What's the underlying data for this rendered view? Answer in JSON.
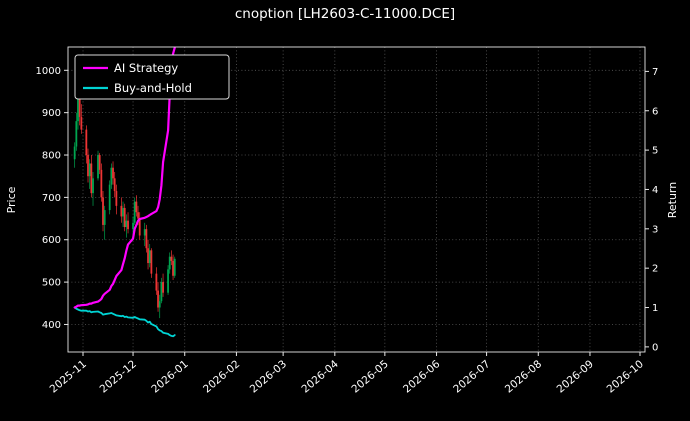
{
  "title": "cnoption [LH2603-C-11000.DCE]",
  "axes": {
    "left_label": "Price",
    "right_label": "Return"
  },
  "legend": [
    {
      "label": "AI Strategy",
      "color": "#ff00ff"
    },
    {
      "label": "Buy-and-Hold",
      "color": "#00d4d4"
    }
  ],
  "colors": {
    "background": "#000000",
    "text": "#ffffff",
    "grid": "#5a5a5a",
    "candle_up": "#00a550",
    "candle_down": "#ef3434"
  },
  "chart_data": {
    "type": "candlestick+line",
    "title": "cnoption [LH2603-C-11000.DCE]",
    "grid": true,
    "legend_position": "upper-left",
    "price_axis": {
      "label": "Price",
      "range": [
        335,
        1055
      ],
      "ticks": [
        400,
        500,
        600,
        700,
        800,
        900,
        1000
      ]
    },
    "return_axis": {
      "label": "Return",
      "range": [
        -0.13,
        7.62
      ],
      "ticks": [
        0,
        1,
        2,
        3,
        4,
        5,
        6,
        7
      ]
    },
    "x_axis": {
      "range": [
        "2025-10-23",
        "2026-10-04"
      ],
      "tick_dates": [
        "2025-11-01",
        "2025-12-01",
        "2026-01-01",
        "2026-02-01",
        "2026-03-01",
        "2026-04-01",
        "2026-05-01",
        "2026-06-01",
        "2026-07-01",
        "2026-08-01",
        "2026-09-01",
        "2026-10-01"
      ],
      "tick_labels": [
        "2025-11",
        "2025-12",
        "2026-01",
        "2026-02",
        "2026-03",
        "2026-04",
        "2026-05",
        "2026-06",
        "2026-07",
        "2026-08",
        "2026-09",
        "2026-10"
      ]
    },
    "candles": {
      "up_color": "#00a550",
      "down_color": "#ef3434",
      "dates": [
        "2025-10-27",
        "2025-10-28",
        "2025-10-29",
        "2025-10-30",
        "2025-10-31",
        "2025-11-03",
        "2025-11-04",
        "2025-11-05",
        "2025-11-06",
        "2025-11-07",
        "2025-11-10",
        "2025-11-11",
        "2025-11-12",
        "2025-11-13",
        "2025-11-14",
        "2025-11-17",
        "2025-11-18",
        "2025-11-19",
        "2025-11-20",
        "2025-11-21",
        "2025-11-24",
        "2025-11-25",
        "2025-11-26",
        "2025-11-27",
        "2025-11-28",
        "2025-12-01",
        "2025-12-02",
        "2025-12-03",
        "2025-12-04",
        "2025-12-05",
        "2025-12-08",
        "2025-12-09",
        "2025-12-10",
        "2025-12-11",
        "2025-12-12",
        "2025-12-15",
        "2025-12-16",
        "2025-12-17",
        "2025-12-18",
        "2025-12-19",
        "2025-12-22",
        "2025-12-23",
        "2025-12-24",
        "2025-12-25",
        "2025-12-26"
      ],
      "open": [
        790,
        820,
        880,
        940,
        890,
        860,
        800,
        750,
        780,
        710,
        745,
        800,
        765,
        700,
        635,
        670,
        730,
        770,
        745,
        715,
        680,
        655,
        675,
        630,
        645,
        625,
        640,
        690,
        665,
        650,
        610,
        625,
        580,
        545,
        575,
        520,
        480,
        440,
        455,
        500,
        475,
        530,
        560,
        550,
        515
      ],
      "high": [
        830,
        900,
        950,
        945,
        920,
        870,
        815,
        790,
        800,
        760,
        810,
        805,
        780,
        715,
        680,
        740,
        780,
        785,
        760,
        730,
        700,
        690,
        685,
        660,
        665,
        655,
        700,
        705,
        680,
        665,
        640,
        635,
        600,
        590,
        580,
        535,
        500,
        470,
        510,
        520,
        540,
        570,
        575,
        565,
        560
      ],
      "low": [
        770,
        810,
        860,
        870,
        850,
        780,
        735,
        720,
        700,
        680,
        740,
        755,
        690,
        620,
        600,
        660,
        720,
        730,
        700,
        660,
        640,
        630,
        620,
        605,
        615,
        600,
        635,
        655,
        635,
        600,
        585,
        570,
        530,
        535,
        510,
        470,
        430,
        415,
        450,
        465,
        470,
        520,
        540,
        505,
        510
      ],
      "close": [
        820,
        880,
        940,
        890,
        860,
        800,
        750,
        780,
        710,
        745,
        800,
        765,
        700,
        635,
        670,
        730,
        770,
        745,
        715,
        680,
        655,
        675,
        630,
        645,
        625,
        640,
        690,
        665,
        650,
        610,
        625,
        580,
        545,
        575,
        520,
        480,
        440,
        455,
        500,
        475,
        530,
        560,
        550,
        515,
        555
      ]
    },
    "series": [
      {
        "name": "AI Strategy",
        "axis": "return",
        "color": "#ff00ff",
        "width": 2.2,
        "dates": [
          "2025-10-27",
          "2025-10-28",
          "2025-10-29",
          "2025-10-30",
          "2025-10-31",
          "2025-11-03",
          "2025-11-04",
          "2025-11-05",
          "2025-11-06",
          "2025-11-07",
          "2025-11-10",
          "2025-11-11",
          "2025-11-12",
          "2025-11-13",
          "2025-11-14",
          "2025-11-17",
          "2025-11-18",
          "2025-11-19",
          "2025-11-20",
          "2025-11-21",
          "2025-11-24",
          "2025-11-25",
          "2025-11-26",
          "2025-11-27",
          "2025-11-28",
          "2025-12-01",
          "2025-12-02",
          "2025-12-03",
          "2025-12-04",
          "2025-12-05",
          "2025-12-08",
          "2025-12-09",
          "2025-12-10",
          "2025-12-11",
          "2025-12-12",
          "2025-12-15",
          "2025-12-16",
          "2025-12-17",
          "2025-12-18",
          "2025-12-19",
          "2025-12-22",
          "2025-12-23",
          "2025-12-24",
          "2025-12-25",
          "2025-12-26"
        ],
        "values": [
          1.0,
          1.02,
          1.05,
          1.05,
          1.06,
          1.07,
          1.08,
          1.1,
          1.1,
          1.12,
          1.15,
          1.18,
          1.22,
          1.3,
          1.35,
          1.45,
          1.55,
          1.6,
          1.7,
          1.8,
          1.95,
          2.1,
          2.25,
          2.45,
          2.6,
          2.75,
          3.0,
          3.1,
          3.2,
          3.25,
          3.28,
          3.3,
          3.32,
          3.35,
          3.38,
          3.45,
          3.55,
          3.75,
          4.1,
          4.7,
          5.5,
          6.4,
          7.2,
          7.45,
          7.6
        ]
      },
      {
        "name": "Buy-and-Hold",
        "axis": "return",
        "color": "#00d4d4",
        "width": 1.8,
        "dates": [
          "2025-10-27",
          "2025-10-28",
          "2025-10-29",
          "2025-10-30",
          "2025-10-31",
          "2025-11-03",
          "2025-11-04",
          "2025-11-05",
          "2025-11-06",
          "2025-11-07",
          "2025-11-10",
          "2025-11-11",
          "2025-11-12",
          "2025-11-13",
          "2025-11-14",
          "2025-11-17",
          "2025-11-18",
          "2025-11-19",
          "2025-11-20",
          "2025-11-21",
          "2025-11-24",
          "2025-11-25",
          "2025-11-26",
          "2025-11-27",
          "2025-11-28",
          "2025-12-01",
          "2025-12-02",
          "2025-12-03",
          "2025-12-04",
          "2025-12-05",
          "2025-12-08",
          "2025-12-09",
          "2025-12-10",
          "2025-12-11",
          "2025-12-12",
          "2025-12-15",
          "2025-12-16",
          "2025-12-17",
          "2025-12-18",
          "2025-12-19",
          "2025-12-22",
          "2025-12-23",
          "2025-12-24",
          "2025-12-25",
          "2025-12-26"
        ],
        "values": [
          1.0,
          0.97,
          0.95,
          0.93,
          0.92,
          0.92,
          0.9,
          0.91,
          0.88,
          0.89,
          0.9,
          0.88,
          0.86,
          0.82,
          0.83,
          0.85,
          0.86,
          0.84,
          0.82,
          0.8,
          0.78,
          0.79,
          0.76,
          0.77,
          0.75,
          0.74,
          0.76,
          0.74,
          0.72,
          0.7,
          0.69,
          0.66,
          0.62,
          0.64,
          0.58,
          0.52,
          0.45,
          0.42,
          0.4,
          0.36,
          0.33,
          0.3,
          0.28,
          0.27,
          0.3
        ]
      }
    ]
  }
}
